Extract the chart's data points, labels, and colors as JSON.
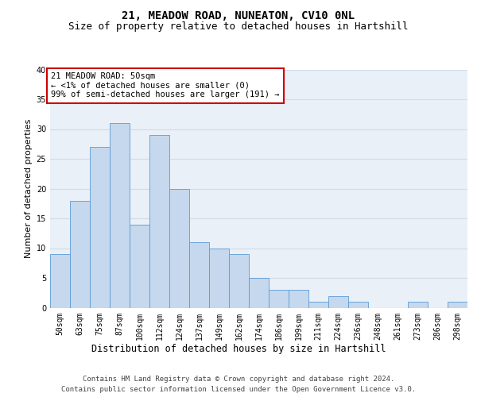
{
  "title1": "21, MEADOW ROAD, NUNEATON, CV10 0NL",
  "title2": "Size of property relative to detached houses in Hartshill",
  "xlabel": "Distribution of detached houses by size in Hartshill",
  "ylabel": "Number of detached properties",
  "categories": [
    "50sqm",
    "63sqm",
    "75sqm",
    "87sqm",
    "100sqm",
    "112sqm",
    "124sqm",
    "137sqm",
    "149sqm",
    "162sqm",
    "174sqm",
    "186sqm",
    "199sqm",
    "211sqm",
    "224sqm",
    "236sqm",
    "248sqm",
    "261sqm",
    "273sqm",
    "286sqm",
    "298sqm"
  ],
  "values": [
    9,
    18,
    27,
    31,
    14,
    29,
    20,
    11,
    10,
    9,
    5,
    3,
    3,
    1,
    2,
    1,
    0,
    0,
    1,
    0,
    1
  ],
  "bar_color": "#c5d8ed",
  "bar_edge_color": "#5b9bd5",
  "annotation_box_color": "#ffffff",
  "annotation_box_edge_color": "#cc0000",
  "annotation_lines": [
    "21 MEADOW ROAD: 50sqm",
    "← <1% of detached houses are smaller (0)",
    "99% of semi-detached houses are larger (191) →"
  ],
  "ylim": [
    0,
    40
  ],
  "yticks": [
    0,
    5,
    10,
    15,
    20,
    25,
    30,
    35,
    40
  ],
  "grid_color": "#d0dce8",
  "bg_color": "#eaf0f8",
  "footer1": "Contains HM Land Registry data © Crown copyright and database right 2024.",
  "footer2": "Contains public sector information licensed under the Open Government Licence v3.0.",
  "title1_fontsize": 10,
  "title2_fontsize": 9,
  "xlabel_fontsize": 8.5,
  "ylabel_fontsize": 8,
  "tick_fontsize": 7,
  "annotation_fontsize": 7.5,
  "footer_fontsize": 6.5
}
